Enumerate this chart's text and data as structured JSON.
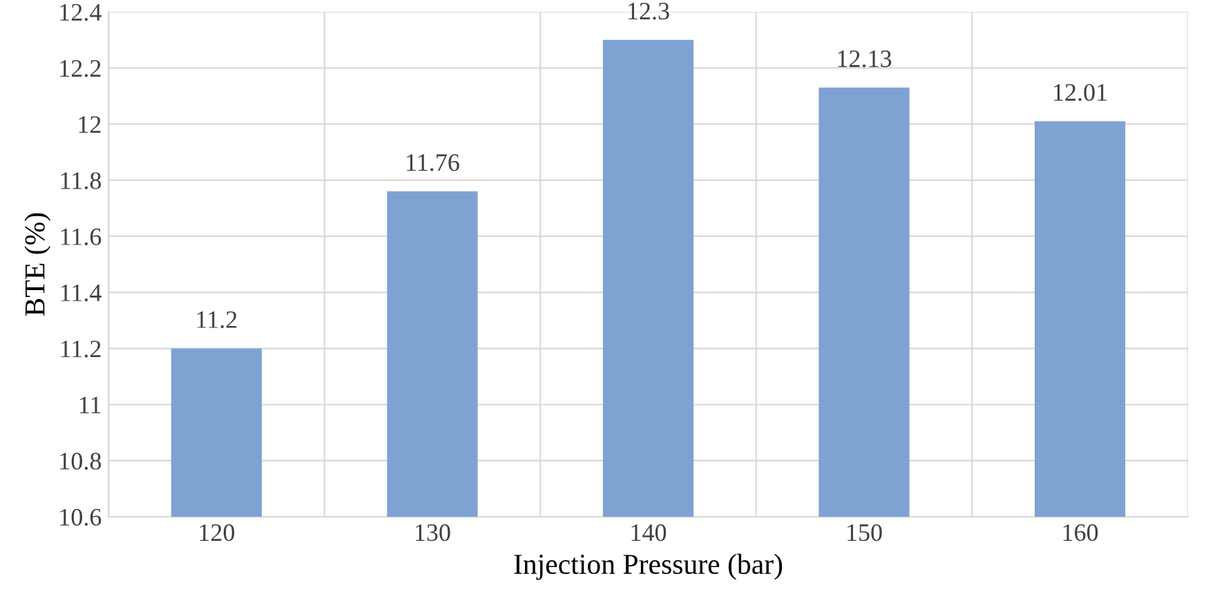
{
  "chart_data": {
    "type": "bar",
    "xlabel": "Injection Pressure (bar)",
    "ylabel": "BTE (%)",
    "categories": [
      "120",
      "130",
      "140",
      "150",
      "160"
    ],
    "values": [
      11.2,
      11.76,
      12.3,
      12.13,
      12.01
    ],
    "color": "#7ea3d2",
    "ylim": [
      10.6,
      12.4
    ],
    "yticks": [
      "10.6",
      "10.8",
      "11",
      "11.2",
      "11.4",
      "11.6",
      "11.8",
      "12",
      "12.2",
      "12.4"
    ],
    "grid": true,
    "data_labels": true
  }
}
